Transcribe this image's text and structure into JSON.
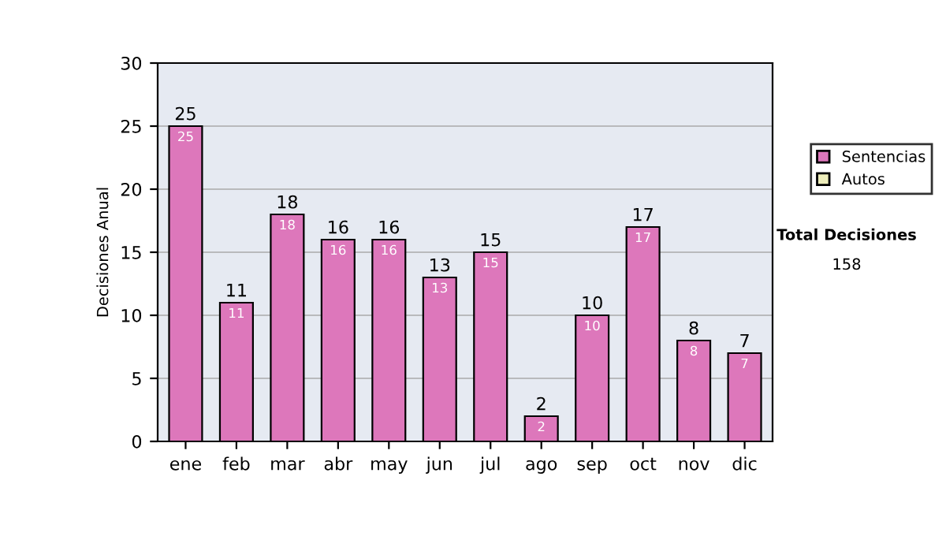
{
  "chart_data": {
    "type": "bar",
    "ylabel": "Decisiones Anual",
    "categories": [
      "ene",
      "feb",
      "mar",
      "abr",
      "may",
      "jun",
      "jul",
      "ago",
      "sep",
      "oct",
      "nov",
      "dic"
    ],
    "series": [
      {
        "name": "Sentencias",
        "color": "#dd77bb",
        "values": [
          25,
          11,
          18,
          16,
          16,
          13,
          15,
          2,
          10,
          17,
          8,
          7
        ]
      },
      {
        "name": "Autos",
        "color": "#eeeebb",
        "values": [
          null,
          null,
          null,
          null,
          null,
          null,
          null,
          null,
          null,
          null,
          null,
          null
        ]
      }
    ],
    "stacked": true,
    "data_labels": true,
    "totals": [
      "25",
      "11",
      "18",
      "16",
      "16",
      "13",
      "15",
      "2",
      "10",
      "17",
      "8",
      "7"
    ],
    "ylim": [
      0,
      30
    ],
    "yticks": [
      0,
      5,
      10,
      15,
      20,
      25,
      30
    ],
    "grid": "y",
    "legend": "right",
    "annotations": [
      "Total Decisiones",
      "158"
    ]
  }
}
